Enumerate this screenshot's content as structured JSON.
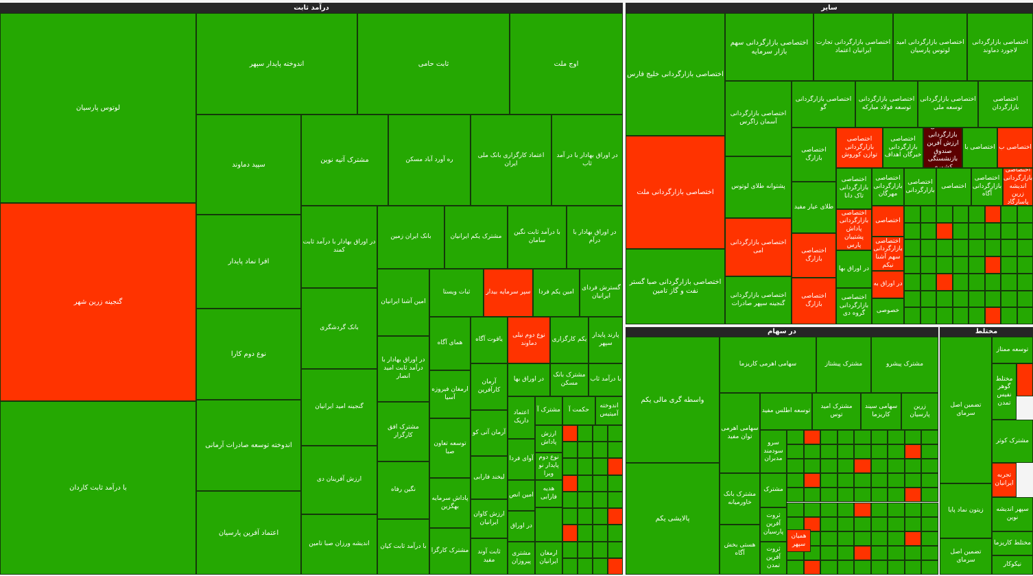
{
  "sections": [
    {
      "title": "درآمد ثابت",
      "tiles": [
        "لوتوس پارسیان",
        "گنجینه زرین شهر",
        "با درآمد ثابت کاردان",
        "اندوخته پایدار سپهر",
        "ثابت حامی",
        "اوج ملت",
        "سپید دماوند",
        "افرا نماد پایدار",
        "نوع دوم کارا",
        "اندوخته توسعه صادرات آرمانی",
        "اعتماد آفرین پارسیان",
        "مشترک آتیه نوین",
        "ره آورد آباد مسکن",
        "اعتماد کارگزاری بانک ملی ایران",
        "در اوراق بهادار با در آمد ثاب",
        "در اوراق بهادار با درآمد ثابت کمند",
        "بانک گردشگری",
        "گنجینه امید ایرانیان",
        "ارزش آفرینان دی",
        "اندیشه ورزان صبا تامین",
        "بانک ایران زمین",
        "مشترک یکم ایرانیان",
        "با درآمد ثابت نگین سامان",
        "در اوراق بهادار با درآم",
        "امین آشنا ایرانیان",
        "در اوراق بهادار با درآمد ثابت امید انصار",
        "مشترک افق کارگزار",
        "نگین رفاه",
        "با درآمد ثابت کیان",
        "ثبات ویستا",
        "سپر سرمایه بیدار",
        "امین یکم فردا",
        "گسترش فردای ایرانیان",
        "همای آگاه",
        "ارمغان فیروزه آسیا",
        "توسعه تعاون صبا",
        "پاداش سرمایه بهگزین",
        "مشترک کارگزا",
        "یاقوت آگاه",
        "آرمان کارآفرین",
        "آرمان آتی کو",
        "لبخند فارابی",
        "ارزش کاوان ایرانیان",
        "ثابت آوند مفید",
        "نوع دوم نیلی دماوند",
        "در اوراق بها",
        "اعتماد داریک",
        "آوای فردا",
        "امین انص",
        "در اوراق",
        "مشتری پیروزان",
        "یکم کارگزاری",
        "پارند پایدار سپهر",
        "مشترک بانک مسکن",
        "با درآمد ثاب",
        "مشترک آ",
        "حکمت آ",
        "اندوخته آمیتیس",
        "ارزش پاداش",
        "نوع دوم پایدار نو ویرا",
        "هدیه فارابی",
        "ارمغان ایرانیان"
      ]
    },
    {
      "title": "سایر",
      "tiles": [
        "اختصاصی بازارگردانی خلیج فارس",
        "اختصاصی بازارگردانی ملت",
        "اختصاصی بازارگردانی صبا گستر نفت و گاز تامین",
        "اختصاصی بازارگردانی سهم بازار سرمایه",
        "اختصاصی بازارگردانی تجارت ایرانیان اعتماد",
        "اختصاصی بازارگردانی امید لوتوس پارسیان",
        "اختصاصی بازارگردانی لاجورد دماوند",
        "اختصاصی بازارگردانی آسمان زاگرس",
        "پشتوانه طلای لوتوس",
        "اختصاصی بازارگردانی امی",
        "اختصاصی بازارگردانی گنجینه سپهر صادرات",
        "اختصاصی بازارگردانی گو",
        "اختصاصی بازارگردانی توسعه فولاد مبارکه",
        "اختصاصی بازارگردانی توسعه ملی",
        "اختصاصی بازارگردان",
        "اختصاصی بازارگ",
        "طلای عیار مفید",
        "اختصاصی بازارگ",
        "اختصاصی بازارگ",
        "اختصاصی بازارگردانی توازن کوروش",
        "اختصاصی بازارگردانی خبرگان اهداف",
        "اختصاصی بازارگردانی ارزش آفرین صندوق بازنشستگی کشوری",
        "اختصاصی با",
        "اختصاصی ب",
        "اختصاصی بازارگردانی تاک دانا",
        "اختصاصی بازارگردانی مهرگان",
        "اختصاصی بازارگردانی",
        "اختصاصی",
        "اختصاصی بازارگردانی آگاه",
        "اختصاصی بازارگردانی اندیشه زرین پاسارگاد",
        "اختصاصی بازارگردانی پاداش پشتیبان پارس",
        "اختصاصی",
        "اختصاصی بازارگردانی سهم آشنا نیکم",
        "در اوراق بها",
        "اختصاصی بازارگردانی گروه دی",
        "در اوراق به",
        "خصوصی"
      ]
    },
    {
      "title": "در سهام",
      "tiles": [
        "واسطه گری مالی یکم",
        "پالایشی یکم",
        "سهامی اهرمی کاریزما",
        "مشترک پیشتاز",
        "مشترک پیشرو",
        "سهامی اهرمی توان مفید",
        "مشترک بانک خاورمیانه",
        "هستی بخش آگاه",
        "توسعه اطلس مفید",
        "مشترک امید توس",
        "سهامی سیند کاریزما",
        "زرین پارسیان",
        "سرو سودمند مدبران",
        "مشترک",
        "ثروت آفرین پارسیان",
        "ثروت آفرین تمدن",
        "همیان سپهر"
      ]
    },
    {
      "title": "مختلط",
      "tiles": [
        "تضمین اصل سرمای",
        "زیتون نماد پایا",
        "تضمین اصل سرمای",
        "توسعه ممتاز",
        "مختلط گوهر نفیس تمدن",
        "مشترک کوثر",
        "تجربه ایرانیان",
        "سپهر اندیشه نوین",
        "مختلط کاریزما",
        "نیکوکار"
      ]
    }
  ]
}
